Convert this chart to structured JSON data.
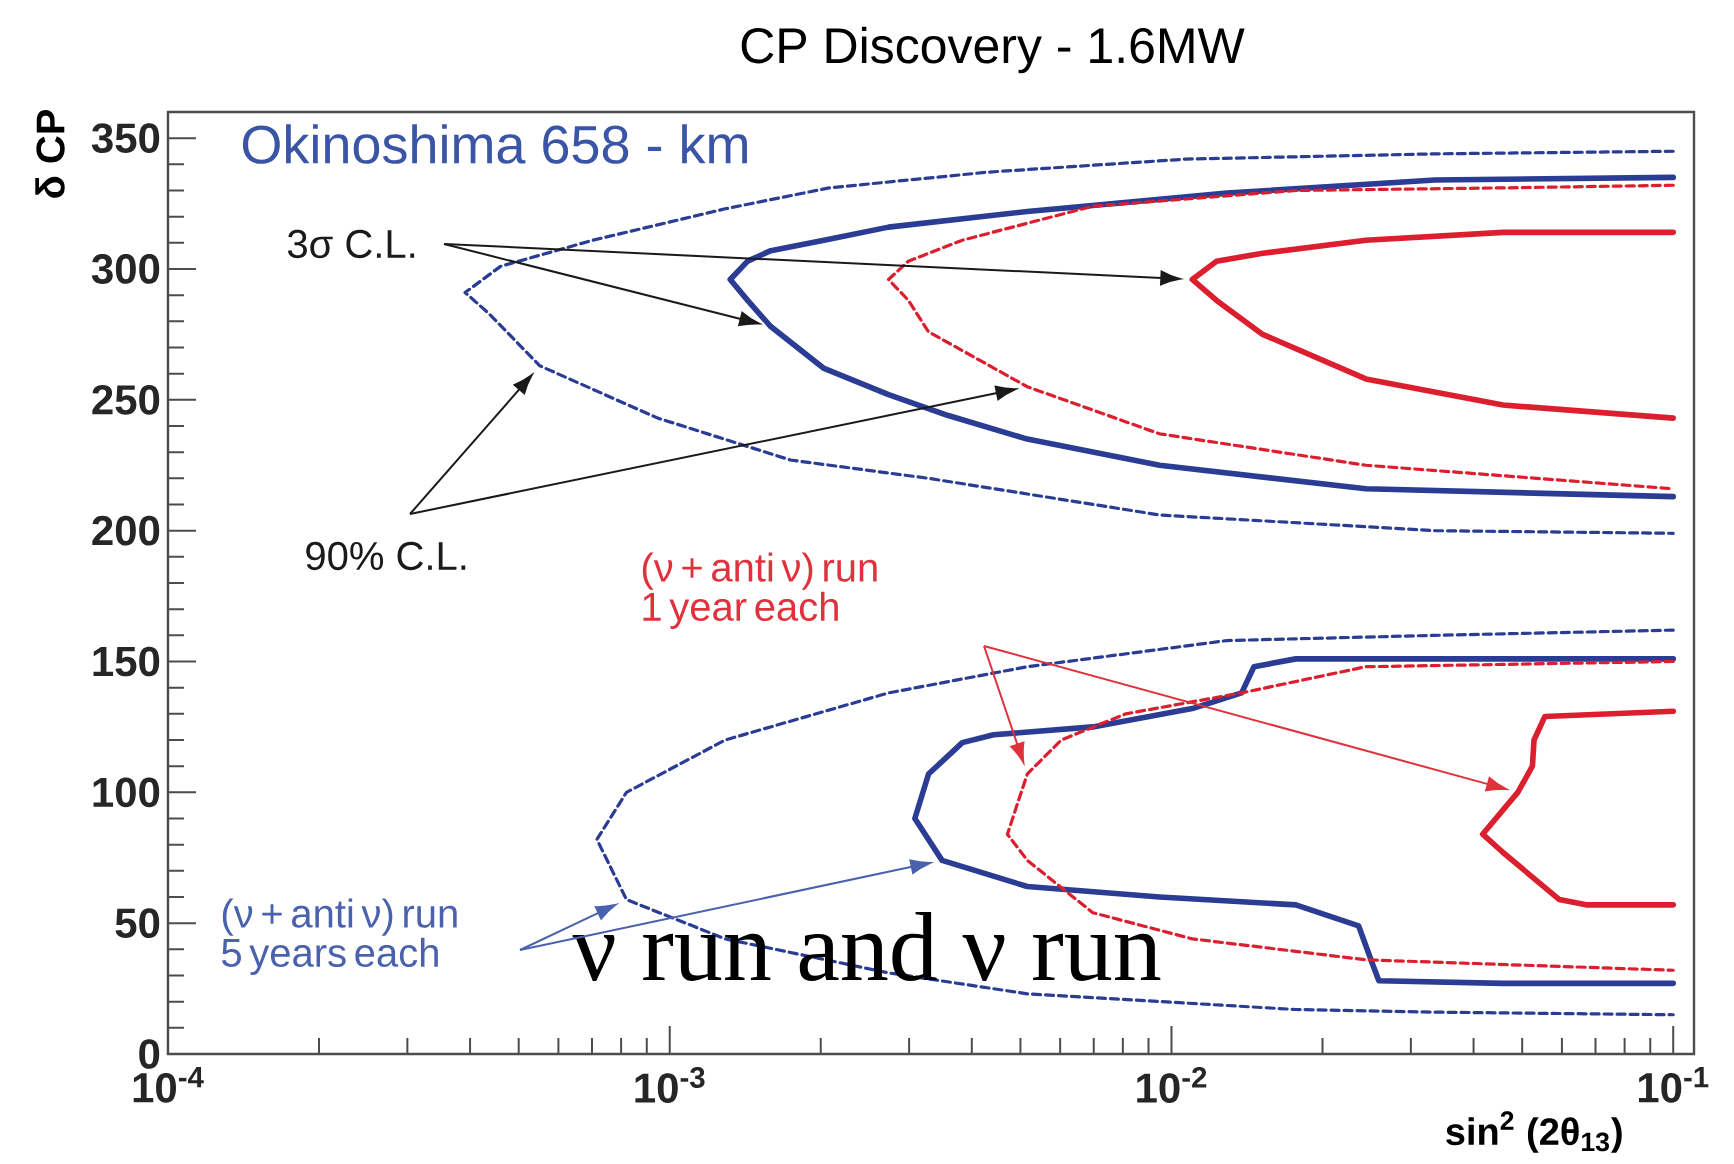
{
  "chart_data": {
    "type": "line",
    "title": "CP Discovery - 1.6MW",
    "xlabel": "sin$^{2}$ (2θ$_{13}$)",
    "ylabel": "δ CP",
    "annotations": [
      "Okinoshima 658 - km",
      "3σ C.L.",
      "90% C.L.",
      "(ν + anti ν) run 1 year each",
      "(ν + anti ν) run 5 years each",
      "ν run and ν run"
    ],
    "log": "x",
    "xlim": [
      0.0001,
      0.11
    ],
    "ylim": [
      0,
      360
    ],
    "xticks": [
      {
        "value": 0.0001,
        "label": "10$^{-4}$"
      },
      {
        "value": 0.001,
        "label": "10$^{-3}$"
      },
      {
        "value": 0.01,
        "label": "10$^{-2}$"
      },
      {
        "value": 0.1,
        "label": "10$^{-1}$"
      }
    ],
    "yticks": [
      0,
      50,
      100,
      150,
      200,
      250,
      300,
      350
    ],
    "series": [
      {
        "color": "#2a3c94",
        "line_style": "dashed",
        "x": [
          0.1,
          0.0335,
          0.0107,
          0.0043,
          0.00208,
          0.00129,
          0.000703,
          0.00046,
          0.000391,
          0.000436,
          0.000551,
          0.000947,
          0.00174,
          0.00328,
          0.00947,
          0.0335,
          0.1
        ],
        "values": [
          345,
          344,
          342,
          337,
          331,
          323,
          311,
          301,
          291,
          283,
          263,
          243,
          227,
          220,
          206,
          200,
          199
        ]
      },
      {
        "color": "#2a3c94",
        "line_style": "solid",
        "x": [
          0.1,
          0.0335,
          0.0129,
          0.00516,
          0.00273,
          0.00203,
          0.00159,
          0.00143,
          0.00132,
          0.00143,
          0.00159,
          0.00203,
          0.00273,
          0.00359,
          0.00516,
          0.00947,
          0.0244,
          0.1
        ],
        "values": [
          335,
          334,
          329,
          322,
          316,
          311,
          307,
          303,
          296,
          288,
          278,
          262,
          252,
          244,
          235,
          225,
          216,
          213
        ]
      },
      {
        "color": "#dc1f2e",
        "line_style": "dashed",
        "x": [
          0.1,
          0.0458,
          0.0177,
          0.00697,
          0.00383,
          0.00299,
          0.00273,
          0.00299,
          0.00328,
          0.00516,
          0.00947,
          0.0244,
          0.1
        ],
        "values": [
          332,
          331,
          330,
          324,
          311,
          303,
          296,
          288,
          276,
          255,
          237,
          225,
          216
        ]
      },
      {
        "color": "#dc1f2e",
        "line_style": "solid",
        "x": [
          0.1,
          0.0458,
          0.0244,
          0.0152,
          0.0123,
          0.011,
          0.0123,
          0.0152,
          0.0244,
          0.0458,
          0.1
        ],
        "values": [
          314,
          314,
          311,
          306,
          303,
          296,
          288,
          275,
          258,
          248,
          243
        ]
      },
      {
        "color": "#2a3c94",
        "line_style": "dashed",
        "x": [
          0.1,
          0.0335,
          0.0129,
          0.00516,
          0.00273,
          0.00129,
          0.00082,
          0.000716,
          0.00082,
          0.00129,
          0.00273,
          0.00516,
          0.0177,
          0.0335,
          0.1
        ],
        "values": [
          162,
          160,
          158,
          148,
          138,
          120,
          100,
          82,
          59,
          44,
          31,
          23,
          17,
          16,
          15
        ]
      },
      {
        "color": "#2a3c94",
        "line_style": "solid",
        "x": [
          0.1,
          0.0177,
          0.0146,
          0.0138,
          0.011,
          0.00697,
          0.00442,
          0.00383,
          0.00328,
          0.00308,
          0.00349,
          0.00516,
          0.00947,
          0.0177,
          0.0236,
          0.0252,
          0.0259,
          0.0458,
          0.1
        ],
        "values": [
          151,
          151,
          148,
          138,
          132,
          125,
          122,
          119,
          107,
          90,
          74,
          64,
          60,
          57,
          49,
          34,
          28,
          27,
          27
        ]
      },
      {
        "color": "#dc1f2e",
        "line_style": "dashed",
        "x": [
          0.1,
          0.0244,
          0.0138,
          0.00811,
          0.00603,
          0.00516,
          0.00471,
          0.00516,
          0.00697,
          0.011,
          0.0244,
          0.1
        ],
        "values": [
          150,
          148,
          138,
          130,
          120,
          107,
          84,
          74,
          54,
          44,
          36,
          32
        ]
      },
      {
        "color": "#dc1f2e",
        "line_style": "solid",
        "x": [
          0.1,
          0.0555,
          0.0528,
          0.0524,
          0.049,
          0.0417,
          0.0458,
          0.0593,
          0.067,
          0.1
        ],
        "values": [
          131,
          129,
          120,
          110,
          100,
          84,
          77,
          59,
          57,
          57
        ]
      }
    ]
  }
}
